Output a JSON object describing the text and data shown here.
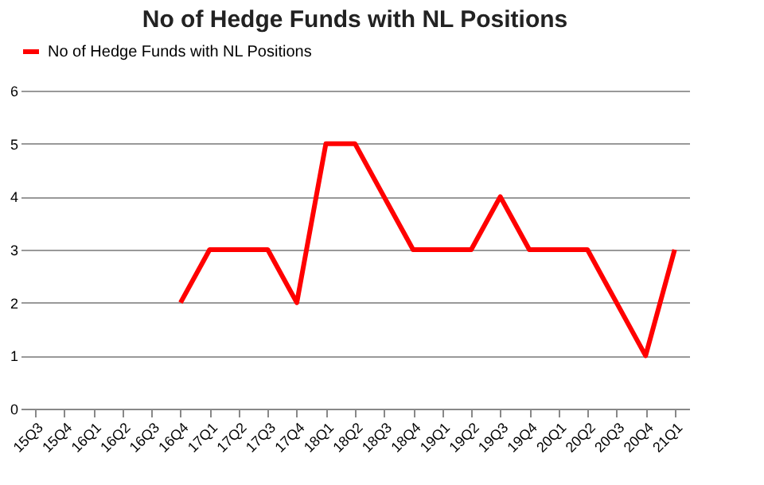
{
  "chart_data": {
    "type": "line",
    "title": "No of Hedge Funds with NL Positions",
    "categories": [
      "15Q3",
      "15Q4",
      "16Q1",
      "16Q2",
      "16Q3",
      "16Q4",
      "17Q1",
      "17Q2",
      "17Q3",
      "17Q4",
      "18Q1",
      "18Q2",
      "18Q3",
      "18Q4",
      "19Q1",
      "19Q2",
      "19Q3",
      "19Q4",
      "20Q1",
      "20Q2",
      "20Q3",
      "20Q4",
      "21Q1"
    ],
    "series": [
      {
        "name": "No of Hedge Funds with NL Positions",
        "color": "#ff0000",
        "values": [
          null,
          null,
          null,
          null,
          null,
          2,
          3,
          3,
          3,
          2,
          5,
          5,
          4,
          3,
          3,
          3,
          4,
          3,
          3,
          3,
          2,
          1,
          3
        ]
      }
    ],
    "ylim": [
      0,
      6
    ],
    "yticks": [
      0,
      1,
      2,
      3,
      4,
      5,
      6
    ],
    "grid": "y",
    "legend": "top",
    "marker": "none",
    "line_style": "solid"
  }
}
